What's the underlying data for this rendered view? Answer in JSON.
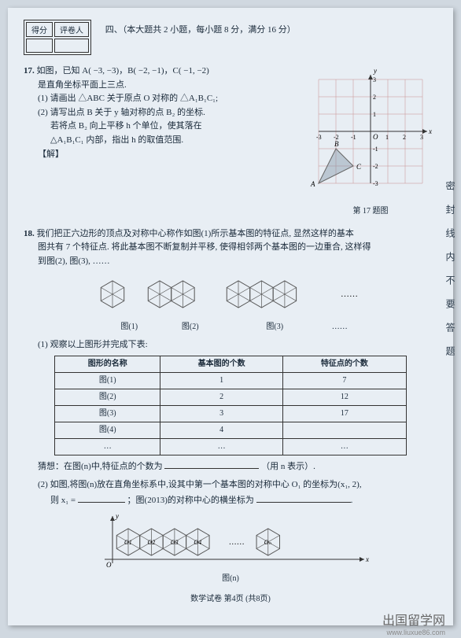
{
  "scoreBox": {
    "h1": "得分",
    "h2": "评卷人"
  },
  "sectionTitle": "四、（本大题共 2 小题，每小题 8 分，满分 16 分）",
  "p17": {
    "num": "17.",
    "line1": "如图，已知 A( −3, −3)，B( −2, −1)，C( −1, −2)",
    "line2": "是直角坐标平面上三点.",
    "sub1": "(1) 请画出 △ABC 关于原点 O 对称的 △A₁B₁C₁;",
    "sub2": "(2) 请写出点 B 关于 y 轴对称的点 B₂ 的坐标.",
    "sub3": "若将点 B₂ 向上平移 h 个单位，使其落在",
    "sub4": "△A₁B₁C₁ 内部，指出 h 的取值范围.",
    "solve": "【解】",
    "caption": "第 17 题图",
    "graph": {
      "xmin": -3,
      "xmax": 3,
      "ymin": -3,
      "ymax": 3,
      "grid_color": "#c89090",
      "axis_color": "#333",
      "tri_color": "#666",
      "tri_fill": "rgba(120,140,160,0.4)",
      "A": [
        -3,
        -3
      ],
      "B": [
        -2,
        -1
      ],
      "C": [
        -1,
        -2
      ]
    }
  },
  "p18": {
    "num": "18.",
    "text1": "我们把正六边形的顶点及对称中心称作如图(1)所示基本图的特征点, 显然这样的基本",
    "text2": "图共有 7 个特征点. 将此基本图不断复制并平移, 使得相邻两个基本图的一边重合, 这样得",
    "text3": "到图(2), 图(3), ……",
    "labels": {
      "f1": "图(1)",
      "f2": "图(2)",
      "f3": "图(3)",
      "dots": "……"
    },
    "sub1": "(1) 观察以上图形并完成下表:",
    "table": {
      "headers": [
        "图形的名称",
        "基本图的个数",
        "特征点的个数"
      ],
      "rows": [
        [
          "图(1)",
          "1",
          "7"
        ],
        [
          "图(2)",
          "2",
          "12"
        ],
        [
          "图(3)",
          "3",
          "17"
        ],
        [
          "图(4)",
          "4",
          ""
        ],
        [
          "…",
          "…",
          "…"
        ]
      ]
    },
    "guess": "猜想：在图(n)中,特征点的个数为",
    "guessTail": "（用 n 表示）.",
    "sub2a": "(2) 如图,将图(n)放在直角坐标系中,设其中第一个基本图的对称中心 O₁ 的坐标为(x₁, 2),",
    "sub2b": "则 x₁ = ",
    "sub2c": "；图(2013)的对称中心的横坐标为",
    "caption": "图(n)"
  },
  "footer": "数学试卷   第4页 (共8页)",
  "sideText": "密封线内不要答题",
  "watermark": "出国留学网",
  "watermarkUrl": "www.liuxue86.com",
  "colors": {
    "hex_line": "#555",
    "axis": "#333"
  }
}
